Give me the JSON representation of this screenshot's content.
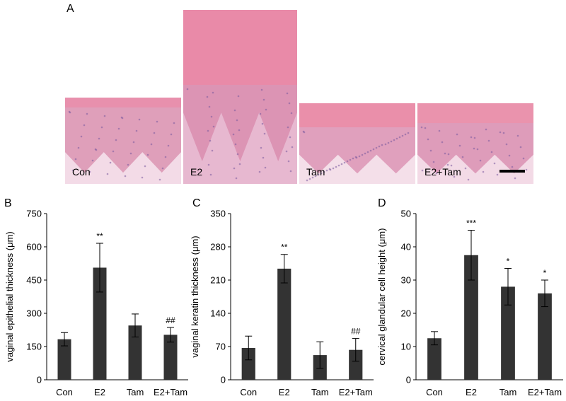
{
  "figure": {
    "panel_a": {
      "letter": "A",
      "images": [
        {
          "label": "Con",
          "epithelium_color": "#df9fba",
          "keratin_color": "#e890ad",
          "stroma_color": "#f3dbe7"
        },
        {
          "label": "E2",
          "epithelium_color": "#dc94b4",
          "keratin_color": "#e98aa8",
          "stroma_color": "#e7b8d0"
        },
        {
          "label": "Tam",
          "epithelium_color": "#e0a0bd",
          "keratin_color": "#ea8faa",
          "stroma_color": "#f4dfe9"
        },
        {
          "label": "E2+Tam",
          "epithelium_color": "#de9cba",
          "keratin_color": "#ea93ad",
          "stroma_color": "#f3dae6"
        }
      ]
    }
  },
  "chart_data": [
    {
      "panel": "B",
      "type": "bar",
      "categories": [
        "Con",
        "E2",
        "Tam",
        "E2+Tam"
      ],
      "values": [
        183,
        506,
        245,
        203
      ],
      "errors": [
        30,
        110,
        52,
        33
      ],
      "annotations": [
        "",
        "**",
        "",
        "##"
      ],
      "ylabel": "vaginal epithelial thickness (μm)",
      "ylim": [
        0,
        750
      ],
      "yticks": [
        0,
        150,
        300,
        450,
        600,
        750
      ],
      "bar_color": "#333333"
    },
    {
      "panel": "C",
      "type": "bar",
      "categories": [
        "Con",
        "E2",
        "Tam",
        "E2+Tam"
      ],
      "values": [
        67,
        234,
        52,
        63
      ],
      "errors": [
        25,
        30,
        28,
        24
      ],
      "annotations": [
        "",
        "**",
        "",
        "##"
      ],
      "ylabel": "vaginal keratin thickness (μm)",
      "ylim": [
        0,
        350
      ],
      "yticks": [
        0,
        70,
        140,
        210,
        280,
        350
      ],
      "bar_color": "#333333"
    },
    {
      "panel": "D",
      "type": "bar",
      "categories": [
        "Con",
        "E2",
        "Tam",
        "E2+Tam"
      ],
      "values": [
        12.5,
        37.5,
        28,
        26
      ],
      "errors": [
        2,
        7.5,
        5.5,
        4
      ],
      "annotations": [
        "",
        "***",
        "*",
        "*"
      ],
      "ylabel": "cervical glandular cell height (μm)",
      "ylim": [
        0,
        50
      ],
      "yticks": [
        0,
        10,
        20,
        30,
        40,
        50
      ],
      "bar_color": "#333333"
    }
  ]
}
